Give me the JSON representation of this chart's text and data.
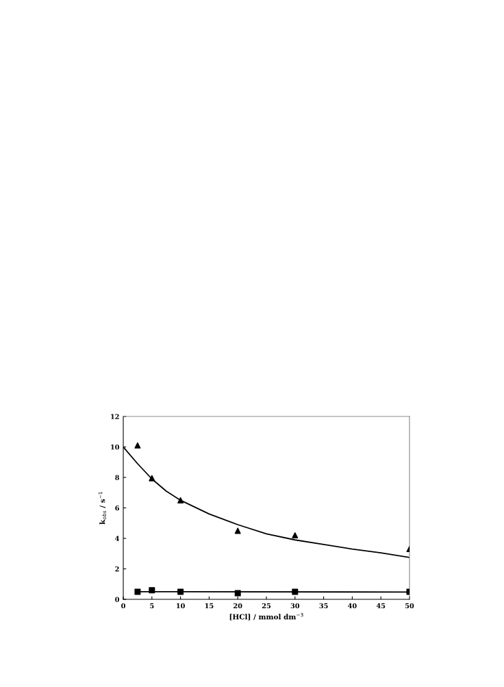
{
  "chart_data": {
    "type": "scatter",
    "xlabel": "[HCl] / mmol dm$^{−3}$",
    "ylabel": "k$_{obs}$ / s$^{−1}$",
    "xlim": [
      0,
      50
    ],
    "ylim": [
      0,
      12
    ],
    "xticks": [
      0,
      5,
      10,
      15,
      20,
      25,
      30,
      35,
      40,
      45,
      50
    ],
    "yticks": [
      0,
      2,
      4,
      6,
      8,
      10,
      12
    ],
    "grid": false,
    "legend": false,
    "series": [
      {
        "marker": "triangle",
        "color": "#000000",
        "x": [
          2.5,
          5,
          10,
          20,
          30,
          50
        ],
        "values": [
          10.1,
          7.95,
          6.5,
          4.5,
          4.2,
          3.3
        ]
      },
      {
        "type": "line",
        "marker": "none",
        "color": "#000000",
        "x": [
          0,
          2.5,
          5,
          7.5,
          10,
          15,
          20,
          25,
          30,
          35,
          40,
          45,
          50
        ],
        "values": [
          10,
          8.9,
          7.9,
          7.1,
          6.5,
          5.6,
          4.9,
          4.3,
          3.9,
          3.6,
          3.3,
          3.05,
          2.75
        ]
      },
      {
        "marker": "square",
        "color": "#000000",
        "x": [
          2.5,
          5,
          10,
          20,
          30,
          50
        ],
        "values": [
          0.5,
          0.6,
          0.5,
          0.4,
          0.5,
          0.5
        ]
      },
      {
        "type": "line",
        "marker": "none",
        "color": "#000000",
        "x": [
          2.5,
          50
        ],
        "values": [
          0.5,
          0.48
        ]
      }
    ]
  }
}
